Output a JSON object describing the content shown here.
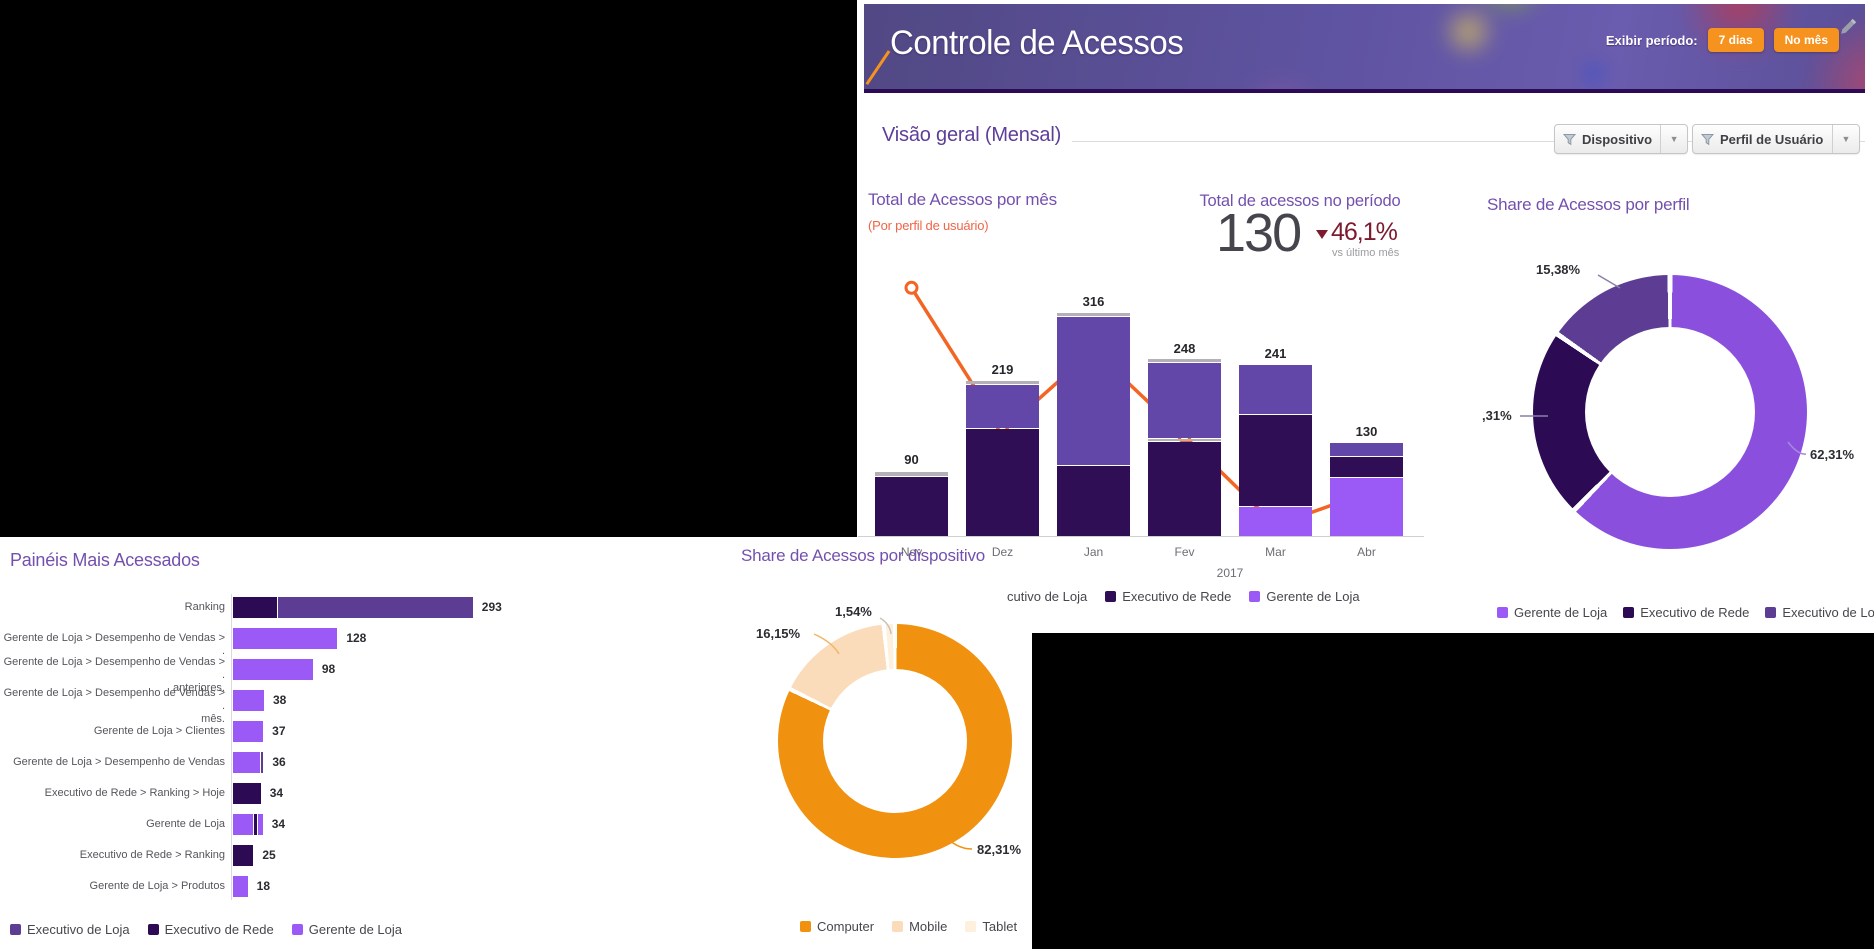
{
  "header": {
    "title": "Controle de Acessos",
    "period_label": "Exibir período:",
    "period_buttons": [
      {
        "label": "7 dias"
      },
      {
        "label": "No mês"
      }
    ],
    "accent_color": "#f6921e"
  },
  "overview": {
    "section_title": "Visão geral (Mensal)",
    "filters": [
      {
        "label": "Dispositivo"
      },
      {
        "label": "Perfil de Usuário"
      }
    ]
  },
  "kpi": {
    "title": "Total de acessos no período",
    "value": "130",
    "delta": "46,1%",
    "delta_direction": "down",
    "delta_caption": "vs último mês"
  },
  "chart_data": [
    {
      "id": "total_acessos_por_mes",
      "type": "bar",
      "stacked": true,
      "title": "Total de Acessos por mês",
      "subtitle": "(Por perfil de usuário)",
      "categories": [
        "Nov",
        "Dez",
        "Jan",
        "Fev",
        "Mar",
        "Abr"
      ],
      "year_label": "2017",
      "totals": [
        90,
        219,
        316,
        248,
        241,
        130
      ],
      "ylim": [
        0,
        380
      ],
      "palette": {
        "dark": "#2f0e55",
        "medium": "#6246a8",
        "light": "#9b59f6",
        "gray": "#b3b0b8"
      },
      "stacks": [
        [
          {
            "c": "dark",
            "v": 85
          },
          {
            "c": "gray",
            "v": 5
          }
        ],
        [
          {
            "c": "dark",
            "v": 153
          },
          {
            "c": "medium",
            "v": 61
          },
          {
            "c": "gray",
            "v": 5
          }
        ],
        [
          {
            "c": "dark",
            "v": 100
          },
          {
            "c": "medium",
            "v": 212
          },
          {
            "c": "gray",
            "v": 4
          }
        ],
        [
          {
            "c": "dark",
            "v": 134
          },
          {
            "c": "gray",
            "v": 3
          },
          {
            "c": "medium",
            "v": 107
          },
          {
            "c": "gray",
            "v": 4
          }
        ],
        [
          {
            "c": "light",
            "v": 41
          },
          {
            "c": "dark",
            "v": 130
          },
          {
            "c": "medium",
            "v": 70
          }
        ],
        [
          {
            "c": "light",
            "v": 83
          },
          {
            "c": "dark",
            "v": 28
          },
          {
            "c": "medium",
            "v": 19
          }
        ]
      ],
      "line_overlay": {
        "color": "#f26522",
        "values": [
          356,
          151,
          267,
          144,
          17,
          63
        ]
      },
      "legend": [
        {
          "label": "cutivo de Loja",
          "swatch": null
        },
        {
          "label": "Executivo de Rede",
          "swatch": "#2f0e55"
        },
        {
          "label": "Gerente de Loja",
          "swatch": "#9b59f6"
        }
      ]
    },
    {
      "id": "share_acessos_por_perfil",
      "type": "pie",
      "donut": true,
      "title": "Share de Acessos por perfil",
      "slices": [
        {
          "label": "Gerente de Loja",
          "value": 62.31,
          "display": "62,31%",
          "color": "#8a50dd"
        },
        {
          "label": "Executivo de Rede",
          "value": 22.31,
          "display": ",31%",
          "color": "#2d0b54"
        },
        {
          "label": "Executivo de Loja",
          "value": 15.38,
          "display": "15,38%",
          "color": "#5c3d93"
        }
      ],
      "legend": [
        {
          "label": "Gerente de Loja",
          "swatch": "#9b59f6"
        },
        {
          "label": "Executivo de Rede",
          "swatch": "#2d0b54"
        },
        {
          "label": "Executivo de Loja",
          "swatch": "#5c3d93"
        }
      ]
    },
    {
      "id": "paineis_mais_acessados",
      "type": "bar",
      "orientation": "horizontal",
      "title": "Painéis Mais Acessados",
      "palette": {
        "dark": "#2d0b54",
        "medium": "#5c3d93",
        "light": "#9b59f6"
      },
      "rows": [
        {
          "label": "Ranking",
          "label2": "",
          "value": 293,
          "segments": [
            {
              "c": "dark",
              "v": 54
            },
            {
              "c": "medium",
              "v": 239
            }
          ]
        },
        {
          "label": "Gerente de Loja > Desempenho de Vendas > .",
          "label2": "",
          "value": 128,
          "segments": [
            {
              "c": "light",
              "v": 128
            }
          ]
        },
        {
          "label": "Gerente de Loja > Desempenho de Vendas > .",
          "label2": "anteriores.",
          "value": 98,
          "segments": [
            {
              "c": "light",
              "v": 98
            }
          ]
        },
        {
          "label": "Gerente de Loja > Desempenho de Vendas > .",
          "label2": "mês.",
          "value": 38,
          "segments": [
            {
              "c": "light",
              "v": 38
            }
          ]
        },
        {
          "label": "Gerente de Loja > Clientes",
          "label2": "",
          "value": 37,
          "segments": [
            {
              "c": "light",
              "v": 37
            }
          ]
        },
        {
          "label": "Gerente de Loja > Desempenho de Vendas",
          "label2": "",
          "value": 36,
          "segments": [
            {
              "c": "light",
              "v": 33
            },
            {
              "c": "medium",
              "v": 3
            }
          ]
        },
        {
          "label": "Executivo de Rede > Ranking > Hoje",
          "label2": "",
          "value": 34,
          "segments": [
            {
              "c": "dark",
              "v": 34
            }
          ]
        },
        {
          "label": "Gerente de Loja",
          "label2": "",
          "value": 34,
          "segments": [
            {
              "c": "light",
              "v": 25
            },
            {
              "c": "dark",
              "v": 3
            },
            {
              "c": "light",
              "v": 6
            }
          ]
        },
        {
          "label": "Executivo de Rede > Ranking",
          "label2": "",
          "value": 25,
          "segments": [
            {
              "c": "dark",
              "v": 25
            }
          ]
        },
        {
          "label": "Gerente de Loja > Produtos",
          "label2": "",
          "value": 18,
          "segments": [
            {
              "c": "light",
              "v": 18
            }
          ]
        }
      ],
      "legend": [
        {
          "label": "Executivo de Loja",
          "swatch": "#5c3d93"
        },
        {
          "label": "Executivo de Rede",
          "swatch": "#2d0b54"
        },
        {
          "label": "Gerente de Loja",
          "swatch": "#9b59f6"
        }
      ]
    },
    {
      "id": "share_acessos_por_dispositivo",
      "type": "pie",
      "donut": true,
      "title": "Share de Acessos por dispositivo",
      "slices": [
        {
          "label": "Computer",
          "value": 82.31,
          "display": "82,31%",
          "color": "#f0920f"
        },
        {
          "label": "Mobile",
          "value": 16.15,
          "display": "16,15%",
          "color": "#fadcba"
        },
        {
          "label": "Tablet",
          "value": 1.54,
          "display": "1,54%",
          "color": "#fdf0dc"
        }
      ],
      "legend": [
        {
          "label": "Computer",
          "swatch": "#f0920f"
        },
        {
          "label": "Mobile",
          "swatch": "#fadcba"
        },
        {
          "label": "Tablet",
          "swatch": "#fdf0dc"
        }
      ]
    }
  ]
}
